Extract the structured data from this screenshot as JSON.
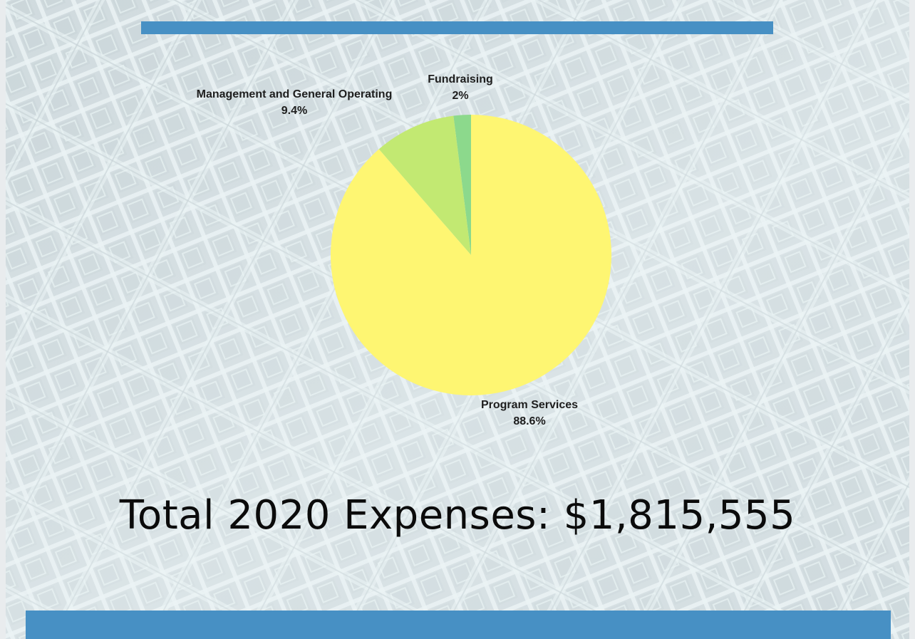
{
  "theme": {
    "bar_color": "#4790c4",
    "pattern_line_color": "#f2fbfc",
    "pattern_shadow_color": "#b9c6cc"
  },
  "chart_data": {
    "type": "pie",
    "title": "",
    "slices": [
      {
        "name": "Fundraising",
        "label": "Fundraising",
        "value": 2,
        "value_label": "2%",
        "color": "#8cd98c"
      },
      {
        "name": "Management and General Operating",
        "label": "Management and General Operating",
        "value": 9.4,
        "value_label": "9.4%",
        "color": "#c2e972"
      },
      {
        "name": "Program Services",
        "label": "Program Services",
        "value": 88.6,
        "value_label": "88.6%",
        "color": "#fef672"
      }
    ],
    "start_angle_deg": 0,
    "direction": "counterclockwise",
    "legend": "none"
  },
  "summary": {
    "total_text": "Total 2020 Expenses: $1,815,555"
  }
}
